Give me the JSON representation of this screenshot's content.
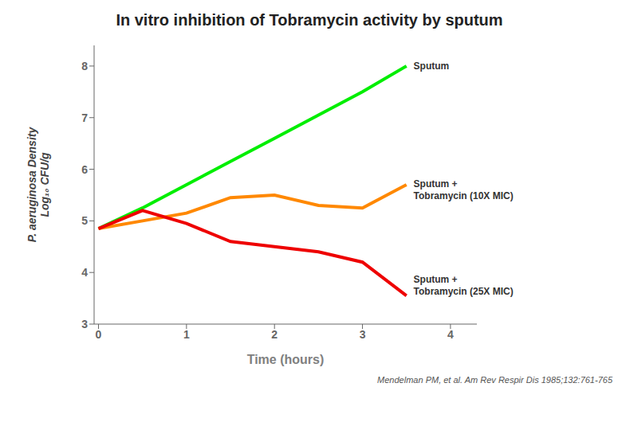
{
  "chart_data": {
    "type": "line",
    "title": "In vitro inhibition of Tobramycin activity by sputum",
    "xlabel": "Time (hours)",
    "ylabel": "P. aeruginosa Density\nLog₁₀ CFU/g",
    "x": [
      0,
      0.5,
      1.0,
      1.5,
      2.0,
      2.5,
      3.0,
      3.5
    ],
    "series": [
      {
        "color": "#00ee00",
        "values": [
          4.85,
          5.25,
          5.7,
          6.15,
          6.6,
          7.05,
          7.5,
          8.0
        ]
      },
      {
        "color": "#ff8800",
        "values": [
          4.85,
          5.0,
          5.15,
          5.45,
          5.5,
          5.3,
          5.25,
          5.7
        ]
      },
      {
        "color": "#ee0000",
        "values": [
          4.85,
          5.2,
          4.95,
          4.6,
          4.5,
          4.4,
          4.2,
          3.55
        ]
      }
    ],
    "xlim": [
      -0.05,
      4.3
    ],
    "ylim": [
      3,
      8.4
    ],
    "xticks": [
      0,
      1,
      2,
      3,
      4
    ],
    "yticks": [
      3,
      4,
      5,
      6,
      7,
      8
    ],
    "grid": false,
    "annotations": [
      {
        "text": "Sputum",
        "x": 3.58,
        "y": 8.0
      },
      {
        "text": "Sputum +\nTobramycin (10X MIC)",
        "x": 3.58,
        "y": 5.6
      },
      {
        "text": "Sputum +\nTobramycin (25X MIC)",
        "x": 3.58,
        "y": 3.75
      }
    ],
    "citation": "Mendelman PM, et al. Am Rev Respir Dis 1985;132:761-765"
  }
}
